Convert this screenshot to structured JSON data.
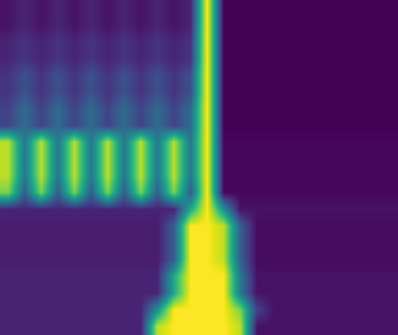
{
  "chart_data": {
    "type": "heatmap",
    "color": "viridis",
    "tick_labels": false,
    "clim": [
      0,
      1
    ],
    "cells": [
      [
        0.05,
        0.1,
        0.05,
        0.1,
        0.05,
        0.1,
        0.05,
        0.1,
        0.05,
        0.1,
        0.05,
        0.1,
        1,
        0,
        0,
        0,
        0,
        0,
        0,
        0,
        0,
        0,
        0,
        0
      ],
      [
        0.05,
        0.1,
        0.05,
        0.1,
        0.05,
        0.1,
        0.05,
        0.1,
        0.05,
        0.1,
        0.05,
        0.1,
        1,
        0,
        0,
        0,
        0,
        0,
        0,
        0,
        0,
        0,
        0,
        0
      ],
      [
        0.1,
        0.15,
        0.1,
        0.15,
        0.1,
        0.15,
        0.1,
        0.15,
        0.1,
        0.15,
        0.1,
        0.15,
        1,
        0,
        0,
        0,
        0,
        0,
        0,
        0,
        0,
        0,
        0,
        0
      ],
      [
        0.1,
        0.15,
        0.1,
        0.15,
        0.1,
        0.15,
        0.1,
        0.15,
        0.1,
        0.15,
        0.1,
        0.15,
        1,
        0,
        0,
        0,
        0,
        0,
        0,
        0,
        0,
        0,
        0,
        0
      ],
      [
        0.15,
        0.25,
        0.15,
        0.25,
        0.15,
        0.25,
        0.15,
        0.25,
        0.15,
        0.25,
        0.15,
        0.25,
        1,
        0,
        0,
        0,
        0,
        0,
        0,
        0,
        0,
        0,
        0,
        0
      ],
      [
        0.15,
        0.25,
        0.15,
        0.25,
        0.15,
        0.25,
        0.15,
        0.25,
        0.15,
        0.25,
        0.15,
        0.25,
        1,
        0,
        0,
        0,
        0,
        0,
        0,
        0,
        0,
        0,
        0,
        0
      ],
      [
        0.2,
        0.35,
        0.2,
        0.35,
        0.2,
        0.35,
        0.2,
        0.35,
        0.2,
        0.35,
        0.2,
        0.35,
        1,
        0,
        0,
        0,
        0,
        0,
        0,
        0,
        0,
        0,
        0,
        0
      ],
      [
        0.2,
        0.35,
        0.2,
        0.35,
        0.2,
        0.35,
        0.2,
        0.35,
        0.2,
        0.35,
        0.2,
        0.35,
        1,
        0,
        0,
        0,
        0,
        0,
        0,
        0,
        0,
        0,
        0,
        0
      ],
      [
        0.9,
        0.4,
        0.9,
        0.4,
        0.9,
        0.4,
        0.9,
        0.4,
        0.9,
        0.4,
        0.9,
        0.4,
        1,
        0.02,
        0.02,
        0.02,
        0.02,
        0.02,
        0.02,
        0.02,
        0.02,
        0.02,
        0.02,
        0.02
      ],
      [
        0.9,
        0.4,
        0.9,
        0.4,
        0.9,
        0.4,
        0.9,
        0.4,
        0.9,
        0.4,
        0.9,
        0.4,
        1,
        0.02,
        0.02,
        0.02,
        0.02,
        0.02,
        0.02,
        0.02,
        0.02,
        0.02,
        0.02,
        0.02
      ],
      [
        0.9,
        0.4,
        0.9,
        0.4,
        0.9,
        0.4,
        0.9,
        0.4,
        0.9,
        0.4,
        0.9,
        0.4,
        1,
        0.02,
        0.02,
        0.02,
        0.02,
        0.02,
        0.02,
        0.02,
        0.02,
        0.02,
        0.02,
        0.02
      ],
      [
        0.8,
        0.3,
        0.8,
        0.3,
        0.8,
        0.3,
        0.8,
        0.3,
        0.8,
        0.3,
        0.8,
        0.3,
        1,
        0.02,
        0.02,
        0.02,
        0.02,
        0.02,
        0.02,
        0.02,
        0.02,
        0.02,
        0.02,
        0.02
      ],
      [
        0.1,
        0.1,
        0.1,
        0.1,
        0.1,
        0.1,
        0.1,
        0.1,
        0.1,
        0.1,
        0.1,
        0.6,
        1,
        0.5,
        0.05,
        0.05,
        0.05,
        0.05,
        0.05,
        0.05,
        0.05,
        0.05,
        0.05,
        0.05
      ],
      [
        0.08,
        0.08,
        0.08,
        0.08,
        0.08,
        0.08,
        0.08,
        0.08,
        0.08,
        0.08,
        0.3,
        1,
        1,
        0.9,
        0.3,
        0.03,
        0.03,
        0.03,
        0.03,
        0.03,
        0.03,
        0.03,
        0.03,
        0.03
      ],
      [
        0.08,
        0.08,
        0.08,
        0.08,
        0.08,
        0.08,
        0.08,
        0.08,
        0.08,
        0.08,
        0.3,
        1,
        1,
        0.9,
        0.3,
        0.03,
        0.03,
        0.03,
        0.03,
        0.03,
        0.03,
        0.03,
        0.03,
        0.03
      ],
      [
        0.08,
        0.08,
        0.08,
        0.08,
        0.08,
        0.08,
        0.08,
        0.08,
        0.08,
        0.08,
        0.3,
        1,
        1,
        0.9,
        0.3,
        0.03,
        0.03,
        0.03,
        0.03,
        0.03,
        0.03,
        0.03,
        0.03,
        0.03
      ],
      [
        0.1,
        0.1,
        0.1,
        0.1,
        0.1,
        0.1,
        0.1,
        0.1,
        0.1,
        0.1,
        0.6,
        1,
        1,
        1,
        0.4,
        0.05,
        0.05,
        0.05,
        0.05,
        0.05,
        0.05,
        0.05,
        0.05,
        0.05
      ],
      [
        0.1,
        0.1,
        0.1,
        0.1,
        0.1,
        0.1,
        0.1,
        0.1,
        0.1,
        0.1,
        0.6,
        1,
        1,
        1,
        0.4,
        0.05,
        0.05,
        0.05,
        0.05,
        0.05,
        0.05,
        0.05,
        0.05,
        0.05
      ],
      [
        0.1,
        0.1,
        0.1,
        0.1,
        0.1,
        0.1,
        0.1,
        0.1,
        0.1,
        0.5,
        1,
        1,
        1,
        1,
        0.8,
        0.2,
        0.05,
        0.05,
        0.05,
        0.05,
        0.05,
        0.05,
        0.05,
        0.05
      ],
      [
        0.1,
        0.1,
        0.1,
        0.1,
        0.1,
        0.1,
        0.1,
        0.1,
        0.1,
        0.9,
        1,
        1,
        1,
        1,
        0.9,
        0.05,
        0.05,
        0.05,
        0.05,
        0.05,
        0.05,
        0.05,
        0.05,
        0.05
      ]
    ]
  }
}
